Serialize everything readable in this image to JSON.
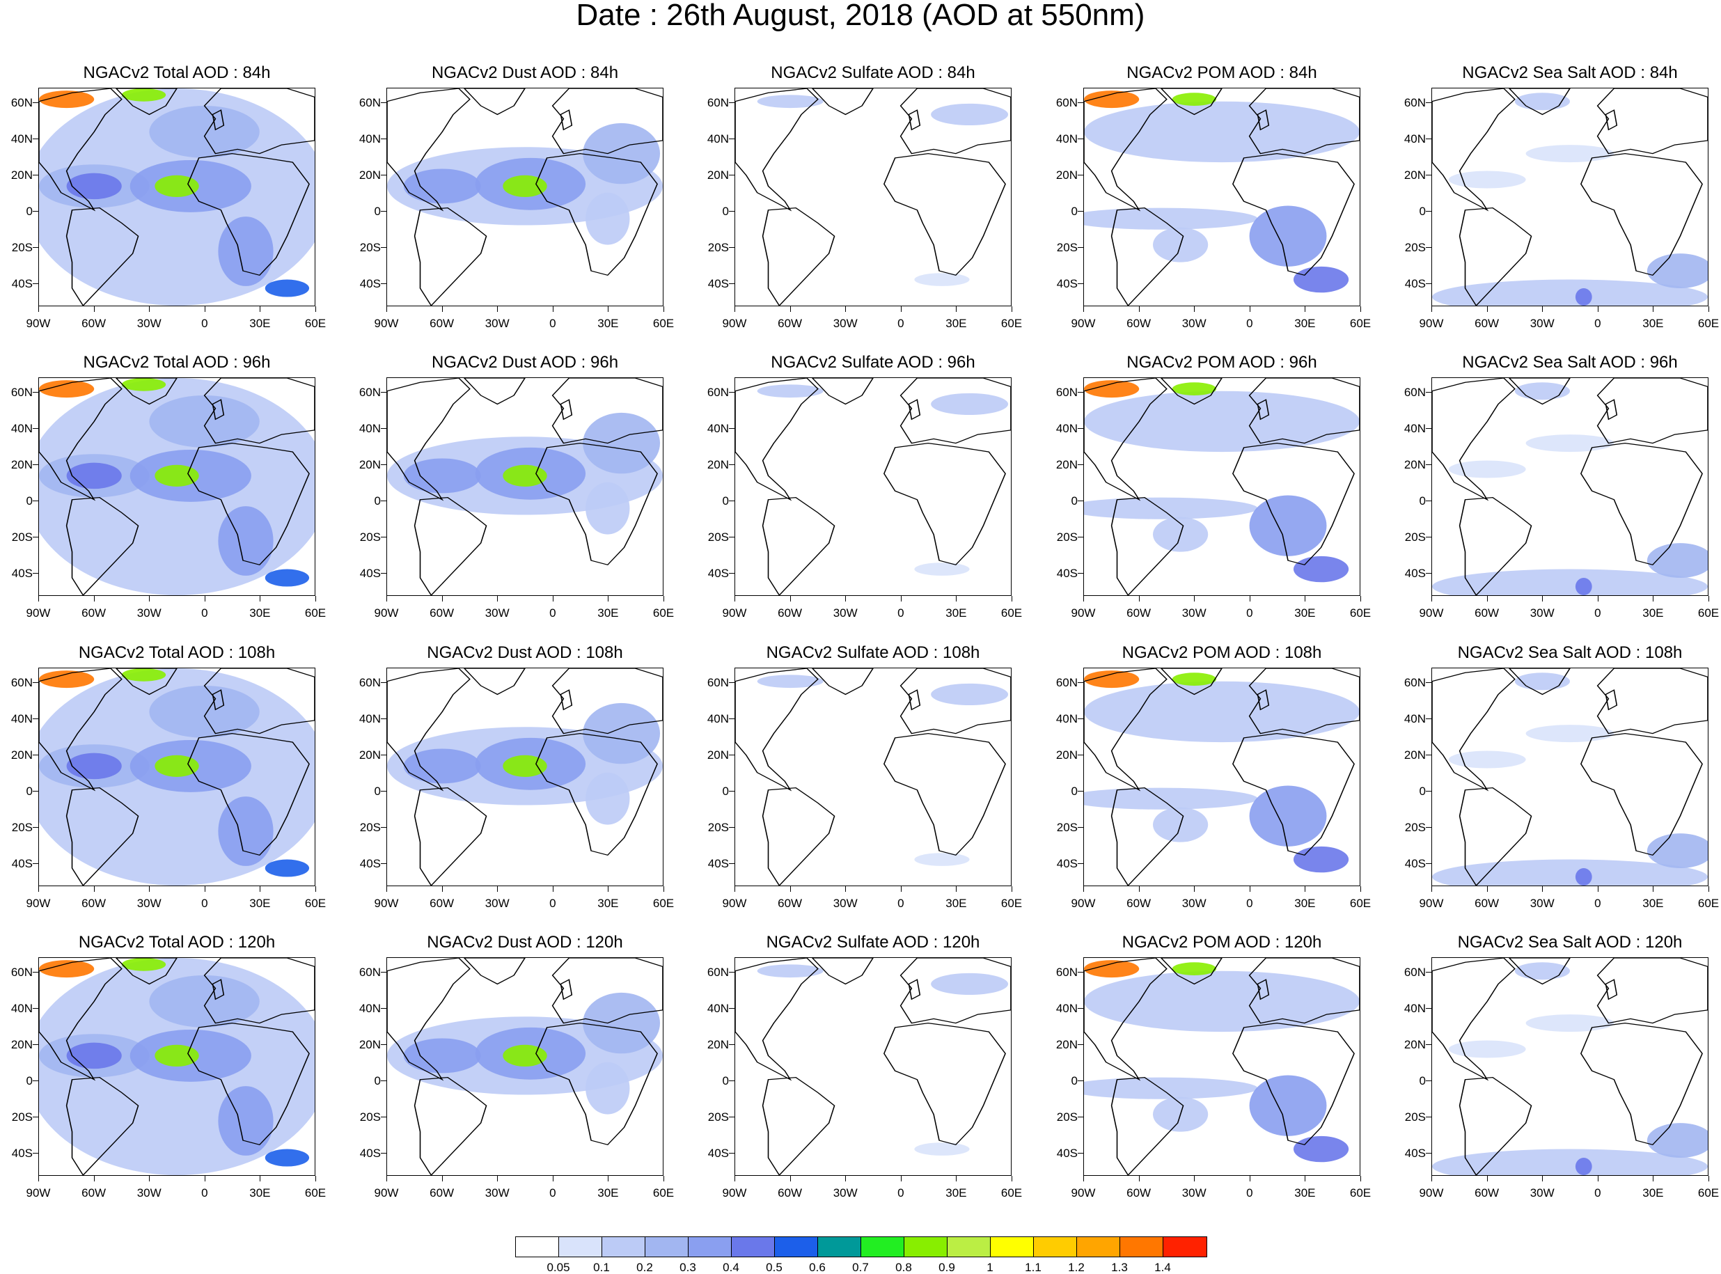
{
  "title": "Date : 26th August, 2018 (AOD at 550nm)",
  "lat_labels": [
    "60N",
    "40N",
    "20N",
    "0",
    "20S",
    "40S"
  ],
  "lon_labels": [
    "90W",
    "60W",
    "30W",
    "0",
    "30E",
    "60E"
  ],
  "columns": [
    {
      "field": "Total AOD",
      "style": "total"
    },
    {
      "field": "Dust AOD",
      "style": "dust"
    },
    {
      "field": "Sulfate AOD",
      "style": "sulfate"
    },
    {
      "field": "POM AOD",
      "style": "pom"
    },
    {
      "field": "Sea Salt AOD",
      "style": "seasalt"
    }
  ],
  "panels": [
    [
      "NGACv2 Total AOD : 84h",
      "NGACv2 Dust AOD : 84h",
      "NGACv2 Sulfate AOD : 84h",
      "NGACv2 POM AOD : 84h",
      "NGACv2 Sea Salt AOD : 84h"
    ],
    [
      "NGACv2 Total AOD : 96h",
      "NGACv2 Dust AOD : 96h",
      "NGACv2 Sulfate AOD : 96h",
      "NGACv2 POM AOD : 96h",
      "NGACv2 Sea Salt AOD : 96h"
    ],
    [
      "NGACv2 Total AOD : 108h",
      "NGACv2 Dust AOD : 108h",
      "NGACv2 Sulfate AOD : 108h",
      "NGACv2 POM AOD : 108h",
      "NGACv2 Sea Salt AOD : 108h"
    ],
    [
      "NGACv2 Total AOD : 120h",
      "NGACv2 Dust AOD : 120h",
      "NGACv2 Sulfate AOD : 120h",
      "NGACv2 POM AOD : 120h",
      "NGACv2 Sea Salt  AOD : 120h"
    ]
  ],
  "colorbar": {
    "colors": [
      "#ffffff",
      "#d9e3fb",
      "#bccbf6",
      "#a2b6f1",
      "#8a9ff0",
      "#6a78ea",
      "#1c5fea",
      "#009999",
      "#22ee22",
      "#88ee00",
      "#bbee44",
      "#ffff00",
      "#ffcc00",
      "#ffa500",
      "#ff7700",
      "#ff2200"
    ],
    "labels": [
      "0.05",
      "0.1",
      "0.2",
      "0.3",
      "0.4",
      "0.5",
      "0.6",
      "0.7",
      "0.8",
      "0.9",
      "1",
      "1.1",
      "1.2",
      "1.3",
      "1.4"
    ]
  }
}
